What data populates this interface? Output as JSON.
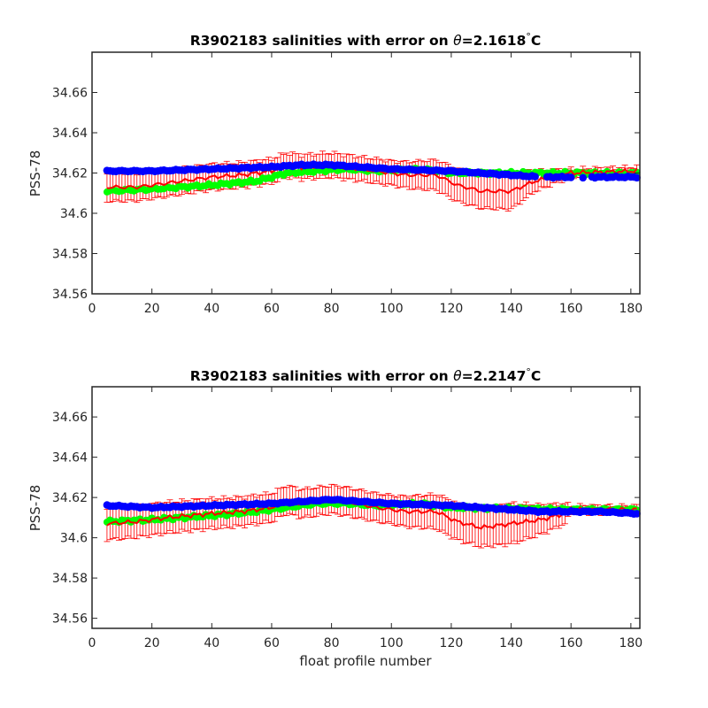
{
  "chart_data": [
    {
      "type": "scatter",
      "title_prefix": "R3902183 salinities with error on ",
      "title_theta": "θ",
      "title_value": "=2.1618",
      "title_degree": "°",
      "title_unit": "C",
      "xlabel": "",
      "ylabel": "PSS-78",
      "xlim": [
        0,
        183
      ],
      "ylim": [
        34.56,
        34.68
      ],
      "xticks": [
        0,
        20,
        40,
        60,
        80,
        100,
        120,
        140,
        160,
        180
      ],
      "yticks": [
        34.56,
        34.58,
        34.6,
        34.62,
        34.64,
        34.66
      ],
      "ytick_labels": [
        "34.56",
        "34.58",
        "34.6",
        "34.62",
        "34.64",
        "34.66"
      ],
      "grid": false,
      "colors": {
        "float": "#0000ff",
        "climatology": "#00ff00",
        "calibrated": "#ff0000"
      },
      "x_start": 5,
      "x_end": 182,
      "red_end": 148,
      "red_to_green_end": 160,
      "float_keys": [
        [
          5,
          34.621
        ],
        [
          20,
          34.621
        ],
        [
          40,
          34.622
        ],
        [
          60,
          34.623
        ],
        [
          70,
          34.624
        ],
        [
          80,
          34.624
        ],
        [
          100,
          34.622
        ],
        [
          120,
          34.621
        ],
        [
          140,
          34.619
        ],
        [
          150,
          34.618
        ],
        [
          160,
          34.618
        ],
        [
          170,
          34.618
        ],
        [
          182,
          34.618
        ]
      ],
      "float_gaps": [
        [
          149,
          152
        ],
        [
          161,
          166
        ]
      ],
      "calibrated_keys": [
        [
          5,
          34.613
        ],
        [
          15,
          34.613
        ],
        [
          25,
          34.615
        ],
        [
          40,
          34.618
        ],
        [
          50,
          34.619
        ],
        [
          60,
          34.621
        ],
        [
          65,
          34.624
        ],
        [
          70,
          34.623
        ],
        [
          80,
          34.624
        ],
        [
          85,
          34.623
        ],
        [
          95,
          34.621
        ],
        [
          105,
          34.619
        ],
        [
          115,
          34.619
        ],
        [
          122,
          34.614
        ],
        [
          130,
          34.611
        ],
        [
          140,
          34.611
        ],
        [
          148,
          34.616
        ],
        [
          160,
          34.62
        ],
        [
          182,
          34.621
        ]
      ],
      "climatology_keys": [
        [
          5,
          34.611
        ],
        [
          20,
          34.612
        ],
        [
          30,
          34.613
        ],
        [
          40,
          34.614
        ],
        [
          55,
          34.616
        ],
        [
          65,
          34.62
        ],
        [
          75,
          34.621
        ],
        [
          85,
          34.622
        ],
        [
          95,
          34.621
        ],
        [
          110,
          34.622
        ],
        [
          120,
          34.62
        ],
        [
          160,
          34.62
        ],
        [
          182,
          34.62
        ]
      ],
      "error_keys": [
        [
          5,
          0.007
        ],
        [
          60,
          0.006
        ],
        [
          100,
          0.006
        ],
        [
          120,
          0.008
        ],
        [
          140,
          0.009
        ],
        [
          148,
          0.005
        ],
        [
          160,
          0.002
        ],
        [
          182,
          0.002
        ]
      ]
    },
    {
      "type": "scatter",
      "title_prefix": "R3902183 salinities with error on ",
      "title_theta": "θ",
      "title_value": "=2.2147",
      "title_degree": "°",
      "title_unit": "C",
      "xlabel": "float profile number",
      "ylabel": "PSS-78",
      "xlim": [
        0,
        183
      ],
      "ylim": [
        34.555,
        34.675
      ],
      "xticks": [
        0,
        20,
        40,
        60,
        80,
        100,
        120,
        140,
        160,
        180
      ],
      "yticks": [
        34.56,
        34.58,
        34.6,
        34.62,
        34.64,
        34.66
      ],
      "ytick_labels": [
        "34.56",
        "34.58",
        "34.6",
        "34.62",
        "34.64",
        "34.66"
      ],
      "grid": false,
      "colors": {
        "float": "#0000ff",
        "climatology": "#00ff00",
        "calibrated": "#ff0000"
      },
      "x_start": 5,
      "x_end": 182,
      "red_end": 158,
      "red_to_green_end": 160,
      "float_keys": [
        [
          5,
          34.616
        ],
        [
          20,
          34.615
        ],
        [
          40,
          34.616
        ],
        [
          60,
          34.617
        ],
        [
          70,
          34.618
        ],
        [
          80,
          34.619
        ],
        [
          100,
          34.617
        ],
        [
          120,
          34.616
        ],
        [
          140,
          34.614
        ],
        [
          150,
          34.613
        ],
        [
          160,
          34.613
        ],
        [
          170,
          34.613
        ],
        [
          182,
          34.612
        ]
      ],
      "float_gaps": [],
      "calibrated_keys": [
        [
          5,
          34.607
        ],
        [
          15,
          34.608
        ],
        [
          25,
          34.61
        ],
        [
          40,
          34.612
        ],
        [
          50,
          34.613
        ],
        [
          60,
          34.615
        ],
        [
          65,
          34.619
        ],
        [
          70,
          34.617
        ],
        [
          80,
          34.619
        ],
        [
          85,
          34.618
        ],
        [
          95,
          34.615
        ],
        [
          105,
          34.613
        ],
        [
          115,
          34.613
        ],
        [
          122,
          34.608
        ],
        [
          130,
          34.605
        ],
        [
          140,
          34.607
        ],
        [
          150,
          34.609
        ],
        [
          158,
          34.612
        ],
        [
          160,
          34.614
        ],
        [
          182,
          34.614
        ]
      ],
      "climatology_keys": [
        [
          5,
          34.608
        ],
        [
          20,
          34.609
        ],
        [
          30,
          34.61
        ],
        [
          40,
          34.611
        ],
        [
          55,
          34.613
        ],
        [
          65,
          34.615
        ],
        [
          75,
          34.617
        ],
        [
          85,
          34.617
        ],
        [
          95,
          34.616
        ],
        [
          110,
          34.617
        ],
        [
          120,
          34.615
        ],
        [
          160,
          34.614
        ],
        [
          182,
          34.614
        ]
      ],
      "error_keys": [
        [
          5,
          0.008
        ],
        [
          60,
          0.007
        ],
        [
          100,
          0.007
        ],
        [
          120,
          0.009
        ],
        [
          140,
          0.01
        ],
        [
          158,
          0.005
        ],
        [
          160,
          0.002
        ],
        [
          182,
          0.002
        ]
      ]
    }
  ]
}
